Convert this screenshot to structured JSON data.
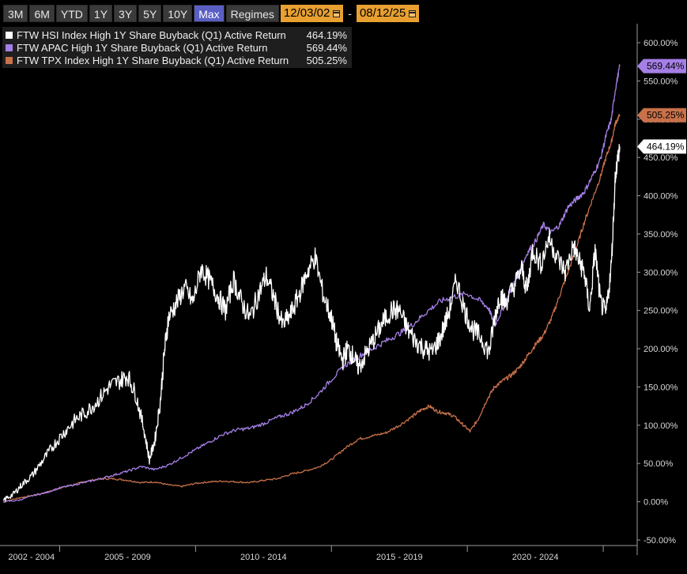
{
  "toolbar": {
    "ranges": [
      "3M",
      "6M",
      "YTD",
      "1Y",
      "3Y",
      "5Y",
      "10Y",
      "Max"
    ],
    "active_range": "Max",
    "regimes_label": "Regimes",
    "start_date": "12/03/02",
    "end_date": "08/12/25",
    "separator": "-"
  },
  "colors": {
    "background": "#000000",
    "hsi": "#ffffff",
    "apac": "#a57fe6",
    "tpx": "#c8714a",
    "active_button": "#5a5fc4",
    "date_box": "#e8a030"
  },
  "chart_data": {
    "type": "line",
    "x_unit": "year",
    "x_range": [
      2002.92,
      2025.61
    ],
    "ylim": [
      -50,
      600
    ],
    "y_ticks": [
      "600.00%",
      "550.00%",
      "500.00%",
      "450.00%",
      "400.00%",
      "350.00%",
      "300.00%",
      "250.00%",
      "200.00%",
      "150.00%",
      "100.00%",
      "50.00%",
      "0.00%",
      "-50.00%"
    ],
    "x_ticks": [
      "2002 - 2004",
      "2005 - 2009",
      "2010 - 2014",
      "2015 - 2019",
      "2020 - 2024"
    ],
    "x_tick_ranges": [
      [
        2002.92,
        2005.0
      ],
      [
        2005.0,
        2010.0
      ],
      [
        2010.0,
        2015.0
      ],
      [
        2015.0,
        2020.0
      ],
      [
        2020.0,
        2025.0
      ]
    ],
    "grid": false,
    "legend_position": "top-left",
    "series": [
      {
        "name": "FTW HSI Index High 1Y Share Buyback (Q1) Active Return",
        "last_label": "464.19%",
        "color": "#ffffff",
        "x": [
          2002.92,
          2003.3,
          2003.6,
          2004.0,
          2004.4,
          2004.8,
          2005.2,
          2005.6,
          2006.0,
          2006.4,
          2006.8,
          2007.2,
          2007.5,
          2007.8,
          2008.1,
          2008.3,
          2008.5,
          2008.7,
          2008.85,
          2009.0,
          2009.3,
          2009.6,
          2009.9,
          2010.2,
          2010.5,
          2010.8,
          2011.1,
          2011.4,
          2011.7,
          2012.0,
          2012.3,
          2012.6,
          2012.9,
          2013.2,
          2013.5,
          2013.8,
          2014.1,
          2014.4,
          2014.7,
          2015.0,
          2015.2,
          2015.4,
          2015.6,
          2015.8,
          2016.0,
          2016.3,
          2016.6,
          2016.9,
          2017.2,
          2017.5,
          2017.8,
          2018.1,
          2018.4,
          2018.7,
          2019.0,
          2019.3,
          2019.6,
          2019.9,
          2020.2,
          2020.5,
          2020.8,
          2021.0,
          2021.2,
          2021.4,
          2021.7,
          2022.0,
          2022.2,
          2022.4,
          2022.7,
          2023.0,
          2023.3,
          2023.6,
          2023.9,
          2024.1,
          2024.3,
          2024.5,
          2024.7,
          2024.9,
          2025.1,
          2025.3,
          2025.45,
          2025.61
        ],
        "values": [
          2,
          10,
          22,
          35,
          55,
          75,
          92,
          108,
          118,
          132,
          150,
          158,
          165,
          140,
          95,
          55,
          80,
          130,
          195,
          240,
          260,
          280,
          260,
          305,
          290,
          270,
          250,
          290,
          260,
          240,
          270,
          295,
          265,
          230,
          245,
          270,
          300,
          320,
          270,
          240,
          205,
          185,
          200,
          190,
          175,
          195,
          215,
          235,
          250,
          250,
          225,
          210,
          200,
          195,
          215,
          245,
          290,
          250,
          225,
          215,
          195,
          240,
          270,
          260,
          280,
          305,
          275,
          330,
          310,
          345,
          320,
          300,
          335,
          315,
          300,
          250,
          330,
          260,
          245,
          310,
          430,
          464.19
        ]
      },
      {
        "name": "FTW APAC High 1Y Share Buyback (Q1) Active Return",
        "last_label": "569.44%",
        "color": "#a57fe6",
        "x": [
          2002.92,
          2003.5,
          2004.0,
          2004.5,
          2005.0,
          2005.5,
          2006.0,
          2006.5,
          2007.0,
          2007.5,
          2008.0,
          2008.5,
          2009.0,
          2009.5,
          2010.0,
          2010.5,
          2011.0,
          2011.5,
          2012.0,
          2012.5,
          2013.0,
          2013.5,
          2014.0,
          2014.5,
          2015.0,
          2015.5,
          2016.0,
          2016.5,
          2017.0,
          2017.5,
          2018.0,
          2018.5,
          2019.0,
          2019.5,
          2020.0,
          2020.5,
          2020.8,
          2021.0,
          2021.3,
          2021.6,
          2021.9,
          2022.2,
          2022.5,
          2022.8,
          2023.1,
          2023.4,
          2023.7,
          2024.0,
          2024.3,
          2024.6,
          2024.9,
          2025.1,
          2025.3,
          2025.45,
          2025.61
        ],
        "values": [
          0,
          2,
          8,
          12,
          18,
          22,
          26,
          30,
          35,
          40,
          46,
          42,
          48,
          58,
          68,
          78,
          88,
          94,
          96,
          102,
          110,
          116,
          125,
          140,
          160,
          178,
          190,
          200,
          210,
          220,
          232,
          248,
          262,
          268,
          272,
          262,
          252,
          230,
          252,
          276,
          298,
          325,
          340,
          362,
          352,
          362,
          385,
          395,
          405,
          425,
          448,
          478,
          500,
          540,
          569.44
        ]
      },
      {
        "name": "FTW TPX Index High 1Y Share Buyback (Q1) Active Return",
        "last_label": "505.25%",
        "color": "#c8714a",
        "x": [
          2002.92,
          2003.5,
          2004.0,
          2004.5,
          2005.0,
          2005.5,
          2006.0,
          2006.5,
          2007.0,
          2007.5,
          2008.0,
          2008.5,
          2009.0,
          2009.5,
          2010.0,
          2010.5,
          2011.0,
          2011.5,
          2012.0,
          2012.5,
          2013.0,
          2013.5,
          2014.0,
          2014.5,
          2015.0,
          2015.5,
          2016.0,
          2016.5,
          2017.0,
          2017.5,
          2018.0,
          2018.3,
          2018.6,
          2018.9,
          2019.2,
          2019.5,
          2019.8,
          2020.1,
          2020.4,
          2020.7,
          2021.0,
          2021.3,
          2021.6,
          2021.9,
          2022.2,
          2022.5,
          2022.8,
          2023.1,
          2023.4,
          2023.7,
          2024.0,
          2024.3,
          2024.6,
          2024.9,
          2025.1,
          2025.3,
          2025.45,
          2025.61
        ],
        "values": [
          0,
          5,
          8,
          12,
          18,
          22,
          27,
          30,
          30,
          28,
          25,
          26,
          22,
          20,
          24,
          26,
          27,
          26,
          25,
          28,
          30,
          36,
          40,
          45,
          55,
          70,
          82,
          86,
          90,
          100,
          112,
          120,
          125,
          118,
          116,
          112,
          102,
          92,
          108,
          132,
          150,
          158,
          165,
          175,
          190,
          205,
          218,
          240,
          270,
          300,
          330,
          365,
          395,
          425,
          450,
          470,
          495,
          505.25
        ]
      }
    ]
  }
}
